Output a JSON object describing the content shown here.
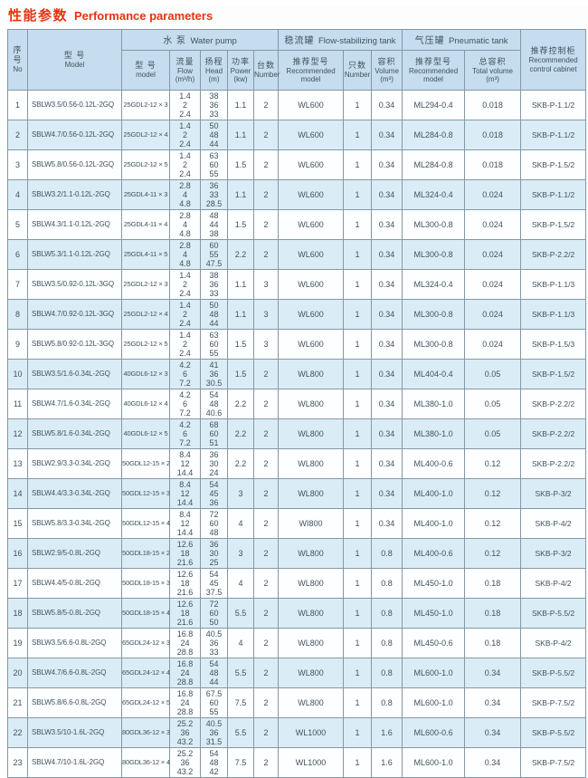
{
  "title": {
    "zh": "性能参数",
    "en": "Performance parameters"
  },
  "colors": {
    "title_red": "#e8330c",
    "header_bg": "#c5ddee",
    "row_bg": "#fcfeff",
    "row_alt_bg": "#daedf7",
    "border": "#8498a6",
    "text": "#41525d"
  },
  "table": {
    "header": {
      "no_zh": "序\n号",
      "no_en": "No",
      "model_zh": "型  号",
      "model_en": "Model",
      "pump_group_zh": "水 泵",
      "pump_group_en": "Water pump",
      "pump_model_zh": "型 号",
      "pump_model_en": "model",
      "flow_zh": "流量",
      "flow_en": "Flow",
      "flow_unit": "(m³/h)",
      "head_zh": "扬程",
      "head_en": "Head",
      "head_unit": "(m)",
      "power_zh": "功率",
      "power_en": "Power",
      "power_unit": "(kw)",
      "pump_qty_zh": "台数",
      "pump_qty_en": "Number",
      "fs_group_zh": "稳流罐",
      "fs_group_en": "Flow-stabilizing tank",
      "fs_model_zh": "推荐型号",
      "fs_model_en": "Recommended model",
      "fs_qty_zh": "只数",
      "fs_qty_en": "Number",
      "fs_vol_zh": "容积",
      "fs_vol_en": "Volume",
      "fs_vol_unit": "(m³)",
      "pt_group_zh": "气压罐",
      "pt_group_en": "Pneumatic tank",
      "pt_model_zh": "推荐型号",
      "pt_model_en": "Recommended model",
      "pt_vol_zh": "总容积",
      "pt_vol_en": "Total volume",
      "pt_vol_unit": "(m³)",
      "cabinet_zh": "推荐控制柜",
      "cabinet_en": "Recommended control cabinet"
    },
    "column_keys": [
      "no",
      "model",
      "pump-model",
      "flow",
      "head",
      "power",
      "pump-qty",
      "fs-model",
      "fs-qty",
      "fs-volume",
      "pt-model",
      "pt-volume",
      "cabinet"
    ],
    "rows": [
      [
        "1",
        "SBLW3.5/0.56-0.12L-2GQ",
        "25GDL2-12 × 3",
        "1.4\n2\n2.4",
        "38\n36\n33",
        "1.1",
        "2",
        "WL600",
        "1",
        "0.34",
        "ML294-0.4",
        "0.018",
        "SKB-P-1.1/2"
      ],
      [
        "2",
        "SBLW4.7/0.56-0.12L-2GQ",
        "25GDL2-12 × 4",
        "1.4\n2\n2.4",
        "50\n48\n44",
        "1.1",
        "2",
        "WL600",
        "1",
        "0.34",
        "ML284-0.8",
        "0.018",
        "SKB-P-1.1/2"
      ],
      [
        "3",
        "SBLW5.8/0.56-0.12L-2GQ",
        "25GDL2-12 × 5",
        "1.4\n2\n2.4",
        "63\n60\n55",
        "1.5",
        "2",
        "WL600",
        "1",
        "0.34",
        "ML284-0.8",
        "0.018",
        "SKB-P-1.5/2"
      ],
      [
        "4",
        "SBLW3.2/1.1-0.12L-2GQ",
        "25GDL4-11 × 3",
        "2.8\n4\n4.8",
        "36\n33\n28.5",
        "1.1",
        "2",
        "WL600",
        "1",
        "0.34",
        "ML324-0.4",
        "0.024",
        "SKB-P-1.1/2"
      ],
      [
        "5",
        "SBLW4.3/1.1-0.12L-2GQ",
        "25GDL4-11 × 4",
        "2.8\n4\n4.8",
        "48\n44\n38",
        "1.5",
        "2",
        "WL600",
        "1",
        "0.34",
        "ML300-0.8",
        "0.024",
        "SKB-P-1.5/2"
      ],
      [
        "6",
        "SBLW5.3/1.1-0.12L-2GQ",
        "25GDL4-11 × 5",
        "2.8\n4\n4.8",
        "60\n55\n47.5",
        "2.2",
        "2",
        "WL600",
        "1",
        "0.34",
        "ML300-0.8",
        "0.024",
        "SKB-P-2.2/2"
      ],
      [
        "7",
        "SBLW3.5/0.92-0.12L-3GQ",
        "25GDL2-12 × 3",
        "1.4\n2\n2.4",
        "38\n36\n33",
        "1.1",
        "3",
        "WL600",
        "1",
        "0.34",
        "ML324-0.4",
        "0.024",
        "SKB-P-1.1/3"
      ],
      [
        "8",
        "SBLW4.7/0.92-0.12L-3GQ",
        "25GDL2-12 × 4",
        "1.4\n2\n2.4",
        "50\n48\n44",
        "1.1",
        "3",
        "WL600",
        "1",
        "0.34",
        "ML300-0.8",
        "0.024",
        "SKB-P-1.1/3"
      ],
      [
        "9",
        "SBLW5.8/0.92-0.12L-3GQ",
        "25GDL2-12 × 5",
        "1.4\n2\n2.4",
        "63\n60\n55",
        "1.5",
        "3",
        "WL600",
        "1",
        "0.34",
        "ML300-0.8",
        "0.024",
        "SKB-P-1.5/3"
      ],
      [
        "10",
        "SBLW3.5/1.6-0.34L-2GQ",
        "40GDL6-12 × 3",
        "4.2\n6\n7.2",
        "41\n36\n30.5",
        "1.5",
        "2",
        "WL800",
        "1",
        "0.34",
        "ML404-0.4",
        "0.05",
        "SKB-P-1.5/2"
      ],
      [
        "11",
        "SBLW4.7/1.6-0.34L-2GQ",
        "40GDL6-12 × 4",
        "4.2\n6\n7.2",
        "54\n48\n40.6",
        "2.2",
        "2",
        "WL800",
        "1",
        "0.34",
        "ML380-1.0",
        "0.05",
        "SKB-P-2.2/2"
      ],
      [
        "12",
        "SBLW5.8/1.6-0.34L-2GQ",
        "40GDL6-12 × 5",
        "4.2\n6\n7.2",
        "68\n60\n51",
        "2.2",
        "2",
        "WL800",
        "1",
        "0.34",
        "ML380-1.0",
        "0.05",
        "SKB-P-2.2/2"
      ],
      [
        "13",
        "SBLW2.9/3.3-0.34L-2GQ",
        "50GDL12-15 × 2",
        "8.4\n12\n14.4",
        "36\n30\n24",
        "2.2",
        "2",
        "WL800",
        "1",
        "0.34",
        "ML400-0.6",
        "0.12",
        "SKB-P-2.2/2"
      ],
      [
        "14",
        "SBLW4.4/3.3-0.34L-2GQ",
        "50GDL12-15 × 3",
        "8.4\n12\n14.4",
        "54\n45\n36",
        "3",
        "2",
        "WL800",
        "1",
        "0.34",
        "ML400-1.0",
        "0.12",
        "SKB-P-3/2"
      ],
      [
        "15",
        "SBLW5.8/3.3-0.34L-2GQ",
        "50GDL12-15 × 4",
        "8.4\n12\n14.4",
        "72\n60\n48",
        "4",
        "2",
        "WI800",
        "1",
        "0.34",
        "ML400-1.0",
        "0.12",
        "SKB-P-4/2"
      ],
      [
        "16",
        "SBLW2.9/5-0.8L-2GQ",
        "50GDL18-15 × 2",
        "12.6\n18\n21.6",
        "36\n30\n25",
        "3",
        "2",
        "WL800",
        "1",
        "0.8",
        "ML400-0.6",
        "0.12",
        "SKB-P-3/2"
      ],
      [
        "17",
        "SBLW4.4/5-0.8L-2GQ",
        "50GDL18-15 × 3",
        "12.6\n18\n21.6",
        "54\n45\n37.5",
        "4",
        "2",
        "WL800",
        "1",
        "0.8",
        "ML450-1.0",
        "0.18",
        "SKB-P-4/2"
      ],
      [
        "18",
        "SBLW5.8/5-0.8L-2GQ",
        "50GDL18-15 × 4",
        "12.6\n18\n21.6",
        "72\n60\n50",
        "5.5",
        "2",
        "WL800",
        "1",
        "0.8",
        "ML450-1.0",
        "0.18",
        "SKB-P-5.5/2"
      ],
      [
        "19",
        "SBLW3.5/6.6-0.8L-2GQ",
        "65GDL24-12 × 3",
        "16.8\n24\n28.8",
        "40.5\n36\n33",
        "4",
        "2",
        "WL800",
        "1",
        "0.8",
        "ML450-0.6",
        "0.18",
        "SKB-P-4/2"
      ],
      [
        "20",
        "SBLW4.7/6.6-0.8L-2GQ",
        "65GDL24-12 × 4",
        "16.8\n24\n28.8",
        "54\n48\n44",
        "5.5",
        "2",
        "WL800",
        "1",
        "0.8",
        "ML600-1.0",
        "0.34",
        "SKB-P-5.5/2"
      ],
      [
        "21",
        "SBLW5.8/6.6-0.8L-2GQ",
        "65GDL24-12 × 5",
        "16.8\n24\n28.8",
        "67.5\n60\n55",
        "7.5",
        "2",
        "WL800",
        "1",
        "0.8",
        "ML600-1.0",
        "0.34",
        "SKB-P-7.5/2"
      ],
      [
        "22",
        "SBLW3.5/10-1.6L-2GQ",
        "80GDL36-12 × 3",
        "25.2\n36\n43.2",
        "40.5\n36\n31.5",
        "5.5",
        "2",
        "WL1000",
        "1",
        "1.6",
        "ML600-0.6",
        "0.34",
        "SKB-P-5.5/2"
      ],
      [
        "23",
        "SBLW4.7/10-1.6L-2GQ",
        "80GDL36-12 × 4",
        "25.2\n36\n43.2",
        "54\n48\n42",
        "7.5",
        "2",
        "WL1000",
        "1",
        "1.6",
        "ML600-1.0",
        "0.34",
        "SKB-P-7.5/2"
      ]
    ]
  }
}
